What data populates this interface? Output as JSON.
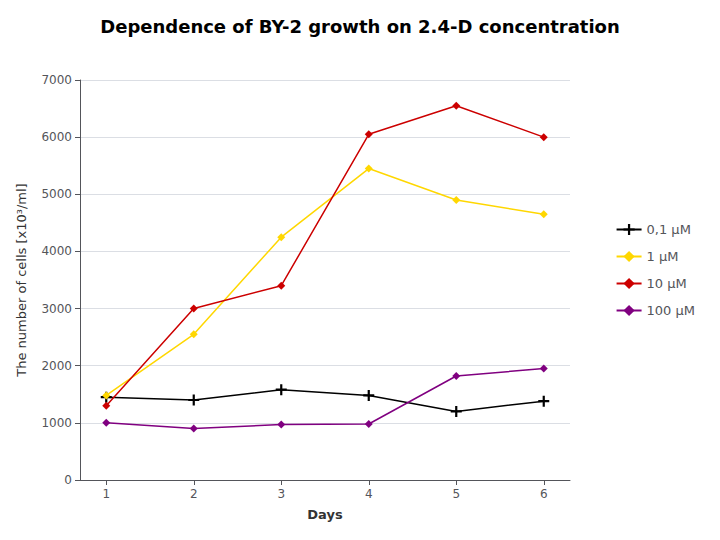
{
  "chart_data": {
    "type": "line",
    "title": "Dependence of BY-2 growth on 2.4-D concentration",
    "xlabel": "Days",
    "ylabel": "The number of cells [x10³/ml]",
    "x": [
      1,
      2,
      3,
      4,
      5,
      6
    ],
    "series": [
      {
        "name": "0,1 μM",
        "color": "#000000",
        "marker": "plus",
        "values": [
          1450,
          1400,
          1580,
          1480,
          1200,
          1380
        ]
      },
      {
        "name": "1 μM",
        "color": "#FFD700",
        "marker": "diamond",
        "values": [
          1480,
          2550,
          4250,
          5450,
          4900,
          4650
        ]
      },
      {
        "name": "10 μM",
        "color": "#CC0000",
        "marker": "diamond",
        "values": [
          1300,
          3000,
          3400,
          6050,
          6550,
          6000
        ]
      },
      {
        "name": "100 μM",
        "color": "#800080",
        "marker": "diamond",
        "values": [
          1000,
          900,
          970,
          980,
          1820,
          1950
        ]
      }
    ],
    "xlim": [
      0.7,
      6.3
    ],
    "xticks": [
      1,
      2,
      3,
      4,
      5,
      6
    ],
    "ylim": [
      0,
      7000
    ],
    "yticks": [
      0,
      1000,
      2000,
      3000,
      4000,
      5000,
      6000,
      7000
    ],
    "grid": true,
    "legend": "right"
  }
}
